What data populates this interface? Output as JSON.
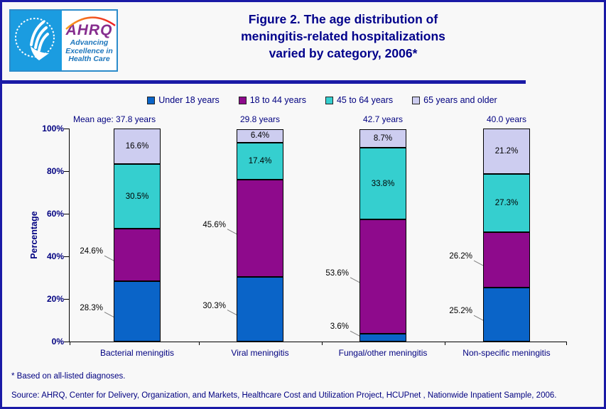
{
  "header": {
    "logo": {
      "org": "AHRQ",
      "tagline_lines": [
        "Advancing",
        "Excellence in",
        "Health Care"
      ]
    },
    "title_lines": [
      "Figure 2. The age distribution of",
      "meningitis-related hospitalizations",
      "varied by category, 2006*"
    ]
  },
  "legend": [
    {
      "label": "Under 18 years",
      "color": "#0A64C8"
    },
    {
      "label": "18 to 44 years",
      "color": "#8E0A8C"
    },
    {
      "label": "45 to 64 years",
      "color": "#35CFCF"
    },
    {
      "label": "65 years and older",
      "color": "#CDCDF0"
    }
  ],
  "chart_data": {
    "type": "bar",
    "stacked": true,
    "title": "Figure 2. The age distribution of meningitis-related hospitalizations varied by category, 2006*",
    "categories": [
      "Bacterial meningitis",
      "Viral meningitis",
      "Fungal/other meningitis",
      "Non-specific meningitis"
    ],
    "mean_age_labels": [
      "Mean age: 37.8 years",
      "29.8 years",
      "42.7 years",
      "40.0 years"
    ],
    "series": [
      {
        "name": "Under 18 years",
        "color": "#0A64C8",
        "values": [
          28.3,
          30.3,
          3.6,
          25.2
        ]
      },
      {
        "name": "18 to 44 years",
        "color": "#8E0A8C",
        "values": [
          24.6,
          45.6,
          53.6,
          26.2
        ]
      },
      {
        "name": "45 to 64 years",
        "color": "#35CFCF",
        "values": [
          30.5,
          17.4,
          33.8,
          27.3
        ]
      },
      {
        "name": "65 years and older",
        "color": "#CDCDF0",
        "values": [
          16.6,
          6.4,
          8.7,
          21.2
        ]
      }
    ],
    "xlabel": "",
    "ylabel": "Percentage",
    "y_ticks": [
      "0%",
      "20%",
      "40%",
      "60%",
      "80%",
      "100%"
    ],
    "ylim": [
      0,
      100
    ],
    "grid": false,
    "legend_position": "top"
  },
  "footnote": "* Based on all-listed diagnoses.",
  "source": "Source: AHRQ, Center for Delivery, Organization, and Markets, Healthcare Cost and Utilization Project, HCUPnet , Nationwide Inpatient Sample, 2006."
}
